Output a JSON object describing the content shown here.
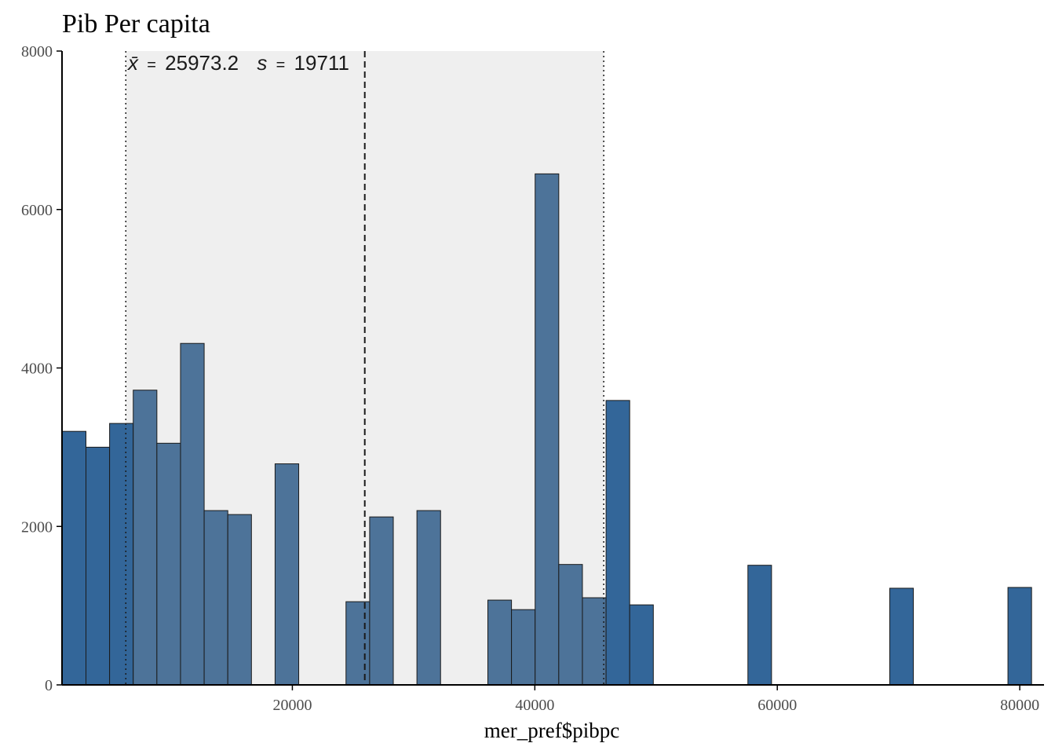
{
  "chart_data": {
    "type": "bar",
    "title": "Pib Per capita",
    "xlabel": "mer_pref$pibpc",
    "ylabel": "",
    "xlim": [
      1000,
      82000
    ],
    "ylim": [
      0,
      8000
    ],
    "x_ticks": [
      20000,
      40000,
      60000,
      80000
    ],
    "y_ticks": [
      0,
      2000,
      4000,
      6000,
      8000
    ],
    "bin_width": 1950,
    "bins": [
      {
        "x": 2000,
        "count": 3200,
        "in_band": false
      },
      {
        "x": 3950,
        "count": 3000,
        "in_band": false
      },
      {
        "x": 5900,
        "count": 3300,
        "in_band": false
      },
      {
        "x": 7850,
        "count": 3720,
        "in_band": true
      },
      {
        "x": 9800,
        "count": 3050,
        "in_band": true
      },
      {
        "x": 11750,
        "count": 4310,
        "in_band": true
      },
      {
        "x": 13700,
        "count": 2200,
        "in_band": true
      },
      {
        "x": 15650,
        "count": 2150,
        "in_band": true
      },
      {
        "x": 19550,
        "count": 2790,
        "in_band": true
      },
      {
        "x": 25400,
        "count": 1050,
        "in_band": true
      },
      {
        "x": 27350,
        "count": 2120,
        "in_band": true
      },
      {
        "x": 31250,
        "count": 2200,
        "in_band": true
      },
      {
        "x": 37100,
        "count": 1070,
        "in_band": true
      },
      {
        "x": 39050,
        "count": 950,
        "in_band": true
      },
      {
        "x": 41000,
        "count": 6450,
        "in_band": true
      },
      {
        "x": 42950,
        "count": 1520,
        "in_band": true
      },
      {
        "x": 44900,
        "count": 1100,
        "in_band": true
      },
      {
        "x": 46850,
        "count": 3590,
        "in_band": false
      },
      {
        "x": 48800,
        "count": 1010,
        "in_band": false
      },
      {
        "x": 58550,
        "count": 1510,
        "in_band": false
      },
      {
        "x": 70250,
        "count": 1220,
        "in_band": false
      },
      {
        "x": 80000,
        "count": 1230,
        "in_band": false
      }
    ],
    "mean": 25973.2,
    "sd": 19711,
    "band": [
      6262.2,
      45684.2
    ],
    "annotation": {
      "mean_symbol": "x̄",
      "mean_value": "25973.2",
      "sd_symbol": "s",
      "sd_value": "19711",
      "equals": "="
    },
    "colors": {
      "bar_outside_band": "#336699",
      "bar_inside_band": "#4d7399",
      "bar_edge": "#1a1a1a",
      "band_fill": "#efefef",
      "axis": "#000000",
      "reference_line": "#1a1a1a"
    },
    "grid": false,
    "legend": "none"
  }
}
